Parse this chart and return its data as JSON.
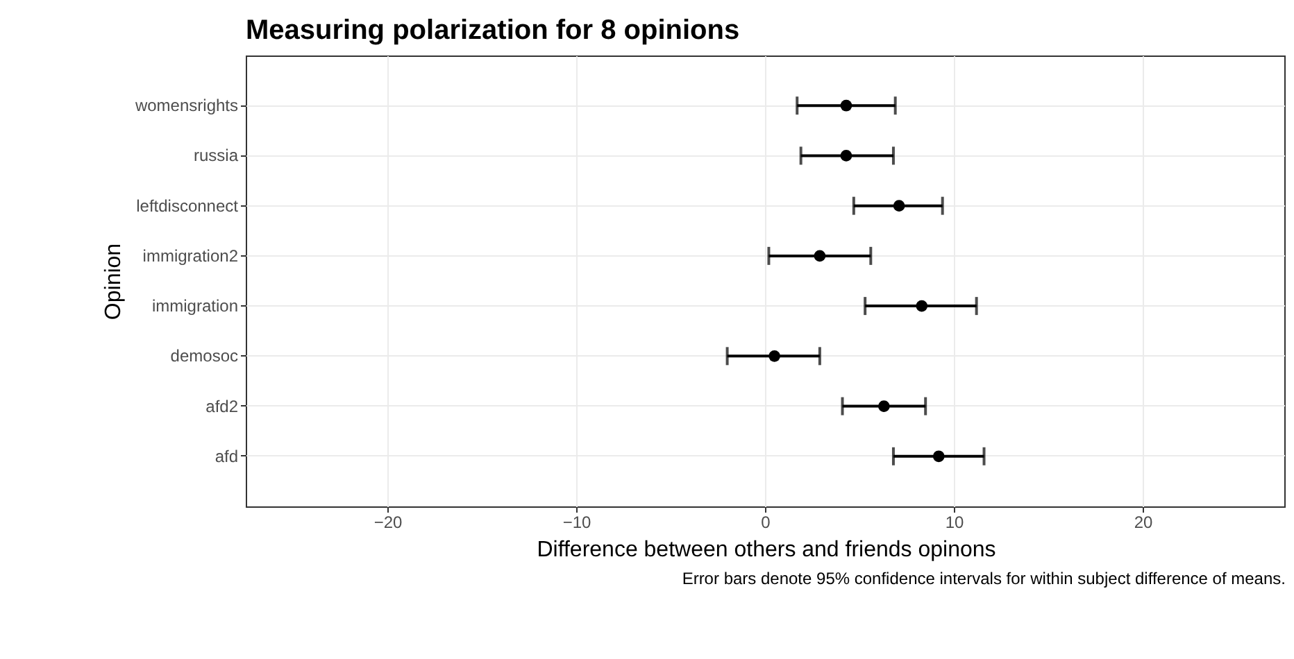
{
  "chart_data": {
    "type": "scatter",
    "title": "Measuring polarization for 8 opinions",
    "xlabel": "Difference between others and friends opinons",
    "ylabel": "Opinion",
    "annotations": [
      "Error bars denote 95% confidence intervals for within subject difference of means."
    ],
    "orientation": "horizontal",
    "categories": [
      "womensrights",
      "russia",
      "leftdisconnect",
      "immigration2",
      "immigration",
      "demosoc",
      "afd2",
      "afd"
    ],
    "series": [
      {
        "color": "#000000",
        "values": [
          4.3,
          4.3,
          7.1,
          2.9,
          8.3,
          0.5,
          6.3,
          9.2
        ],
        "errors": [
          [
            1.7,
            6.9
          ],
          [
            1.9,
            6.8
          ],
          [
            4.7,
            9.4
          ],
          [
            0.2,
            5.6
          ],
          [
            5.3,
            11.2
          ],
          [
            -2.0,
            2.9
          ],
          [
            4.1,
            8.5
          ],
          [
            6.8,
            11.6
          ]
        ]
      }
    ],
    "xlim": [
      -27.5,
      27.5
    ],
    "xticks": [
      -20,
      -10,
      0,
      10,
      20
    ],
    "grid": true,
    "marker": "circle"
  }
}
